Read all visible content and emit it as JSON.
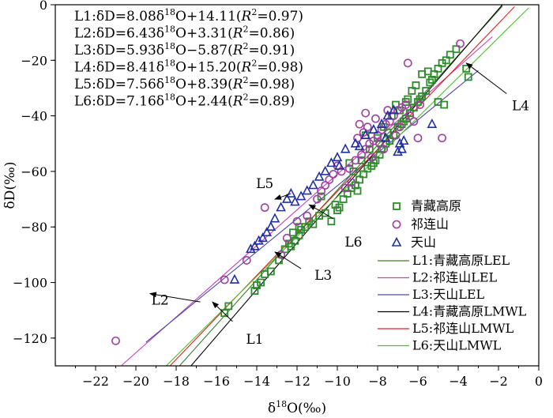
{
  "chart_data": {
    "type": "scatter",
    "xlabel": "δ18O(‰)",
    "xlabel_main": "δ",
    "xlabel_sup": "18",
    "xlabel_rest": "O(‰)",
    "ylabel": "δD(‰)",
    "xlim": [
      -24,
      0
    ],
    "ylim": [
      -130,
      0
    ],
    "x_ticks": [
      -22,
      -20,
      -18,
      -16,
      -14,
      -12,
      -10,
      -8,
      -6,
      -4,
      -2,
      0
    ],
    "y_ticks": [
      0,
      -20,
      -40,
      -60,
      -80,
      -100,
      -120
    ],
    "grid": false,
    "legend_position": "right",
    "equations": [
      {
        "prefix": "L1:δD=8.08δ",
        "sup": "18",
        "suffix": "O+14.11(",
        "r": "R",
        "r2": "2",
        "tail": "=0.97)"
      },
      {
        "prefix": "L2:δD=6.43δ",
        "sup": "18",
        "suffix": "O+3.31(",
        "r": "R",
        "r2": "2",
        "tail": "=0.86)"
      },
      {
        "prefix": "L3:δD=5.93δ",
        "sup": "18",
        "suffix": "O−5.87(",
        "r": "R",
        "r2": "2",
        "tail": "=0.91)"
      },
      {
        "prefix": "L4:δD=8.41δ",
        "sup": "18",
        "suffix": "O+15.20(",
        "r": "R",
        "r2": "2",
        "tail": "=0.98)"
      },
      {
        "prefix": "L5:δD=7.56δ",
        "sup": "18",
        "suffix": "O+8.39(",
        "r": "R",
        "r2": "2",
        "tail": "=0.98)"
      },
      {
        "prefix": "L6:δD=7.16δ",
        "sup": "18",
        "suffix": "O+2.44(",
        "r": "R",
        "r2": "2",
        "tail": "=0.89)"
      }
    ],
    "series": [
      {
        "name": "青藏高原",
        "marker": "square",
        "color": "#2e8b2e",
        "points": [
          [
            -15.6,
            -111
          ],
          [
            -15.4,
            -108.5
          ],
          [
            -14.1,
            -103
          ],
          [
            -13.8,
            -100
          ],
          [
            -13.6,
            -97
          ],
          [
            -13.3,
            -96
          ],
          [
            -14.0,
            -101
          ],
          [
            -12.9,
            -92
          ],
          [
            -12.6,
            -88
          ],
          [
            -12.4,
            -86
          ],
          [
            -12.1,
            -85
          ],
          [
            -11.9,
            -83
          ],
          [
            -11.8,
            -81
          ],
          [
            -12.3,
            -87
          ],
          [
            -11.6,
            -80
          ],
          [
            -11.4,
            -78
          ],
          [
            -11.2,
            -79
          ],
          [
            -11.9,
            -80
          ],
          [
            -12.2,
            -82
          ],
          [
            -10.9,
            -76
          ],
          [
            -10.6,
            -75
          ],
          [
            -10.3,
            -78
          ],
          [
            -10.1,
            -72
          ],
          [
            -9.9,
            -73
          ],
          [
            -9.7,
            -70
          ],
          [
            -10.0,
            -74
          ],
          [
            -9.5,
            -68
          ],
          [
            -9.3,
            -66
          ],
          [
            -9.1,
            -65
          ],
          [
            -8.9,
            -63
          ],
          [
            -8.7,
            -61
          ],
          [
            -9.0,
            -67
          ],
          [
            -8.5,
            -59
          ],
          [
            -8.3,
            -58
          ],
          [
            -8.1,
            -56
          ],
          [
            -7.9,
            -54
          ],
          [
            -8.2,
            -57
          ],
          [
            -7.8,
            -52
          ],
          [
            -7.6,
            -50
          ],
          [
            -7.4,
            -49
          ],
          [
            -7.2,
            -47
          ],
          [
            -7.5,
            -46
          ],
          [
            -7.0,
            -44
          ],
          [
            -6.8,
            -43
          ],
          [
            -6.6,
            -41
          ],
          [
            -6.4,
            -39
          ],
          [
            -6.7,
            -42
          ],
          [
            -6.2,
            -37
          ],
          [
            -6.0,
            -35
          ],
          [
            -5.8,
            -33
          ],
          [
            -5.6,
            -31
          ],
          [
            -5.9,
            -34
          ],
          [
            -5.4,
            -28
          ],
          [
            -5.2,
            -25
          ],
          [
            -5.0,
            -23
          ],
          [
            -4.8,
            -21
          ],
          [
            -5.3,
            -27
          ],
          [
            -4.6,
            -20
          ],
          [
            -4.4,
            -18
          ],
          [
            -4.1,
            -16
          ],
          [
            -3.6,
            -23
          ],
          [
            -3.5,
            -26
          ],
          [
            -4.7,
            -36
          ],
          [
            -5.0,
            -35
          ],
          [
            -5.8,
            -25
          ],
          [
            -6.3,
            -31
          ],
          [
            -6.1,
            -29
          ],
          [
            -5.5,
            -24
          ],
          [
            -6.5,
            -34
          ],
          [
            -6.9,
            -38
          ],
          [
            -7.3,
            -40
          ],
          [
            -7.7,
            -44
          ],
          [
            -8.0,
            -48
          ],
          [
            -8.4,
            -52
          ],
          [
            -8.8,
            -56
          ],
          [
            -9.2,
            -60
          ],
          [
            -6.6,
            -35
          ],
          [
            -7.1,
            -36
          ],
          [
            -8.6,
            -47
          ],
          [
            -9.4,
            -57
          ],
          [
            -10.8,
            -69
          ]
        ]
      },
      {
        "name": "祁连山",
        "marker": "circle",
        "color": "#a040a0",
        "points": [
          [
            -21.0,
            -121
          ],
          [
            -15.6,
            -99
          ],
          [
            -14.5,
            -92
          ],
          [
            -13.6,
            -73
          ],
          [
            -12.8,
            -90
          ],
          [
            -12.5,
            -84
          ],
          [
            -12.0,
            -78
          ],
          [
            -11.5,
            -76
          ],
          [
            -11.0,
            -70
          ],
          [
            -10.6,
            -65
          ],
          [
            -10.4,
            -63
          ],
          [
            -10.0,
            -58
          ],
          [
            -9.8,
            -60
          ],
          [
            -9.4,
            -59
          ],
          [
            -9.1,
            -56
          ],
          [
            -8.8,
            -54
          ],
          [
            -8.6,
            -52
          ],
          [
            -8.4,
            -50
          ],
          [
            -8.2,
            -49
          ],
          [
            -8.0,
            -47
          ],
          [
            -7.8,
            -45
          ],
          [
            -7.6,
            -43
          ],
          [
            -7.4,
            -42
          ],
          [
            -7.2,
            -40
          ],
          [
            -7.0,
            -38
          ],
          [
            -6.8,
            -37
          ],
          [
            -6.6,
            -36
          ],
          [
            -6.4,
            -40
          ],
          [
            -6.2,
            -42
          ],
          [
            -8.5,
            -44
          ],
          [
            -8.7,
            -46
          ],
          [
            -7.9,
            -50
          ],
          [
            -8.3,
            -55
          ],
          [
            -9.0,
            -48
          ],
          [
            -6.0,
            -48
          ],
          [
            -5.9,
            -36
          ],
          [
            -6.5,
            -21
          ],
          [
            -3.9,
            -14
          ],
          [
            -4.8,
            -48
          ],
          [
            -10.2,
            -61
          ],
          [
            -10.8,
            -67
          ],
          [
            -9.6,
            -66
          ],
          [
            -7.5,
            -38
          ],
          [
            -8.1,
            -41
          ],
          [
            -6.9,
            -44
          ],
          [
            -9.3,
            -64
          ],
          [
            -8.9,
            -43
          ],
          [
            -7.7,
            -52
          ],
          [
            -7.1,
            -47
          ],
          [
            -8.6,
            -39
          ]
        ]
      },
      {
        "name": "天山",
        "marker": "triangle",
        "color": "#2030a0",
        "points": [
          [
            -15.1,
            -99
          ],
          [
            -14.3,
            -88
          ],
          [
            -14.1,
            -87
          ],
          [
            -13.9,
            -85
          ],
          [
            -13.7,
            -84
          ],
          [
            -13.5,
            -82
          ],
          [
            -13.3,
            -80
          ],
          [
            -13.1,
            -77
          ],
          [
            -12.8,
            -73
          ],
          [
            -12.5,
            -70
          ],
          [
            -12.3,
            -68
          ],
          [
            -12.1,
            -71
          ],
          [
            -11.8,
            -69
          ],
          [
            -11.5,
            -67
          ],
          [
            -11.2,
            -65
          ],
          [
            -10.9,
            -62
          ],
          [
            -10.6,
            -60
          ],
          [
            -10.3,
            -57
          ],
          [
            -10.0,
            -55
          ],
          [
            -9.6,
            -52
          ],
          [
            -9.1,
            -50
          ],
          [
            -8.6,
            -47
          ],
          [
            -8.2,
            -45
          ],
          [
            -7.8,
            -43
          ],
          [
            -7.5,
            -40
          ],
          [
            -7.2,
            -38
          ],
          [
            -6.9,
            -50
          ],
          [
            -6.8,
            -52
          ],
          [
            -7.0,
            -53
          ],
          [
            -6.7,
            -49
          ],
          [
            -5.3,
            -43
          ],
          [
            -7.6,
            -48
          ],
          [
            -9.9,
            -58
          ],
          [
            -8.9,
            -51
          ]
        ]
      }
    ],
    "lines": [
      {
        "name": "L1:青藏高原LEL",
        "slope": 8.08,
        "intercept": 14.11,
        "color": "#3a7d2a",
        "xrange": [
          -18.4,
          -1.8
        ]
      },
      {
        "name": "L2:祁连山LEL",
        "slope": 6.43,
        "intercept": 3.31,
        "color": "#c040c0",
        "xrange": [
          -20.7,
          -2.3
        ]
      },
      {
        "name": "L3:天山LEL",
        "slope": 5.93,
        "intercept": -5.87,
        "color": "#4a4aa8",
        "xrange": [
          -19.5,
          -3.0
        ]
      },
      {
        "name": "L4:青藏高原LMWL",
        "slope": 8.41,
        "intercept": 15.2,
        "color": "#000000",
        "xrange": [
          -17.3,
          -1.8
        ]
      },
      {
        "name": "L5:祁连山LMWL",
        "slope": 7.56,
        "intercept": 8.39,
        "color": "#e02020",
        "xrange": [
          -18.3,
          -1.2
        ]
      },
      {
        "name": "L6:天山LMWL",
        "slope": 7.16,
        "intercept": 2.44,
        "color": "#50c030",
        "xrange": [
          -18.5,
          -0.5
        ]
      }
    ],
    "annotations": [
      {
        "label": "L1",
        "tail": [
          -15.2,
          -114
        ],
        "head": [
          -16.2,
          -107
        ],
        "text": [
          -14.1,
          -122
        ]
      },
      {
        "label": "L2",
        "tail": [
          -16.8,
          -107
        ],
        "head": [
          -19.3,
          -104
        ],
        "text": [
          -18.8,
          -108
        ]
      },
      {
        "label": "L3",
        "tail": [
          -11.8,
          -95
        ],
        "head": [
          -13.1,
          -89
        ],
        "text": [
          -10.7,
          -99
        ]
      },
      {
        "label": "L4",
        "tail": [
          -1.6,
          -32
        ],
        "head": [
          -3.6,
          -21
        ],
        "text": [
          -0.9,
          -38
        ]
      },
      {
        "label": "L5",
        "tail": [
          -12.3,
          -68
        ],
        "head": [
          -13.1,
          -70
        ],
        "text": [
          -13.6,
          -66
        ]
      },
      {
        "label": "L6",
        "tail": [
          -10.2,
          -77
        ],
        "head": [
          -11.4,
          -72
        ],
        "text": [
          -9.2,
          -87
        ]
      }
    ]
  }
}
